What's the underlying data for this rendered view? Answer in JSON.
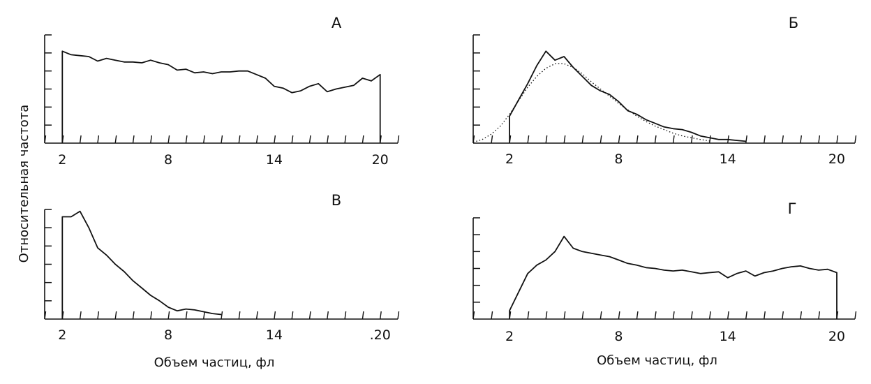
{
  "ylabel": "Относительная частота",
  "chart_data": [
    {
      "type": "line",
      "panel": "А",
      "xlabel": "",
      "xlim": [
        1,
        21
      ],
      "ylim": [
        0,
        6
      ],
      "tick_labels": [
        "2",
        "8",
        "14",
        "20"
      ],
      "series": [
        {
          "style": "solid",
          "x": [
            2,
            2.5,
            3,
            3.5,
            4,
            4.5,
            5,
            5.5,
            6,
            6.5,
            7,
            7.5,
            8,
            8.5,
            9,
            9.5,
            10,
            10.5,
            11,
            11.5,
            12,
            12.5,
            13,
            13.5,
            14,
            14.5,
            15,
            15.5,
            16,
            16.5,
            17,
            17.5,
            18,
            18.5,
            19,
            19.5,
            20
          ],
          "y": [
            5.1,
            4.9,
            4.85,
            4.8,
            4.55,
            4.7,
            4.6,
            4.5,
            4.5,
            4.45,
            4.6,
            4.45,
            4.35,
            4.05,
            4.1,
            3.9,
            3.95,
            3.85,
            3.95,
            3.95,
            4.0,
            4.0,
            3.8,
            3.6,
            3.15,
            3.05,
            2.8,
            2.9,
            3.15,
            3.3,
            2.85,
            3.0,
            3.1,
            3.2,
            3.6,
            3.45,
            3.8
          ]
        }
      ]
    },
    {
      "type": "line",
      "panel": "Б",
      "xlabel": "",
      "xlim": [
        0,
        21
      ],
      "ylim": [
        0,
        6
      ],
      "tick_labels": [
        "2",
        "8",
        "14",
        "20"
      ],
      "series": [
        {
          "style": "solid",
          "x": [
            2,
            2.5,
            3,
            3.5,
            4,
            4.5,
            5,
            5.5,
            6,
            6.5,
            7,
            7.5,
            8,
            8.5,
            9,
            9.5,
            10,
            10.5,
            11,
            11.5,
            12,
            12.5,
            13,
            13.5,
            14,
            14.5,
            15
          ],
          "y": [
            1.5,
            2.4,
            3.3,
            4.3,
            5.1,
            4.6,
            4.8,
            4.2,
            3.7,
            3.2,
            2.9,
            2.7,
            2.3,
            1.8,
            1.6,
            1.3,
            1.1,
            0.9,
            0.8,
            0.75,
            0.6,
            0.4,
            0.3,
            0.2,
            0.2,
            0.15,
            0.1
          ]
        },
        {
          "style": "dotted",
          "x": [
            0,
            0.5,
            1,
            1.5,
            2,
            2.5,
            3,
            3.5,
            4,
            4.5,
            5,
            5.5,
            6,
            6.5,
            7,
            7.5,
            8,
            8.5,
            9,
            9.5,
            10,
            10.5,
            11,
            11.5,
            12,
            12.5,
            13
          ],
          "y": [
            0.05,
            0.2,
            0.5,
            0.95,
            1.6,
            2.35,
            3.1,
            3.7,
            4.15,
            4.4,
            4.4,
            4.2,
            3.85,
            3.4,
            3.0,
            2.6,
            2.2,
            1.85,
            1.5,
            1.2,
            0.95,
            0.75,
            0.55,
            0.4,
            0.3,
            0.2,
            0.12
          ]
        }
      ]
    },
    {
      "type": "line",
      "panel": "В",
      "xlabel": "Объем частиц, фл",
      "xlim": [
        1,
        21
      ],
      "ylim": [
        0,
        6
      ],
      "tick_labels": [
        "2",
        "8",
        "14",
        ".20"
      ],
      "series": [
        {
          "style": "solid",
          "x": [
            2,
            2.5,
            3,
            3.5,
            4,
            4.5,
            5,
            5.5,
            6,
            6.5,
            7,
            7.5,
            8,
            8.5,
            9,
            9.5,
            10,
            10.5,
            11
          ],
          "y": [
            5.6,
            5.6,
            5.9,
            5.0,
            3.9,
            3.5,
            3.0,
            2.6,
            2.1,
            1.7,
            1.3,
            1.0,
            0.65,
            0.45,
            0.55,
            0.5,
            0.4,
            0.3,
            0.25
          ]
        }
      ]
    },
    {
      "type": "line",
      "panel": "Г",
      "xlabel": "Объем частиц, фл",
      "xlim": [
        0,
        21
      ],
      "ylim": [
        0,
        6
      ],
      "tick_labels": [
        "2",
        "8",
        "14",
        "20"
      ],
      "series": [
        {
          "style": "solid",
          "x": [
            2,
            2.5,
            3,
            3.5,
            4,
            4.5,
            5,
            5.5,
            6,
            6.5,
            7,
            7.5,
            8,
            8.5,
            9,
            9.5,
            10,
            10.5,
            11,
            11.5,
            12,
            12.5,
            13,
            13.5,
            14,
            14.5,
            15,
            15.5,
            16,
            16.5,
            17,
            17.5,
            18,
            18.5,
            19,
            19.5,
            20
          ],
          "y": [
            0.5,
            1.6,
            2.7,
            3.2,
            3.5,
            4.0,
            4.9,
            4.2,
            4.0,
            3.9,
            3.8,
            3.7,
            3.5,
            3.3,
            3.2,
            3.05,
            3.0,
            2.9,
            2.85,
            2.9,
            2.8,
            2.7,
            2.75,
            2.8,
            2.45,
            2.7,
            2.85,
            2.55,
            2.75,
            2.85,
            3.0,
            3.1,
            3.15,
            3.0,
            2.9,
            2.95,
            2.75
          ]
        }
      ]
    }
  ]
}
